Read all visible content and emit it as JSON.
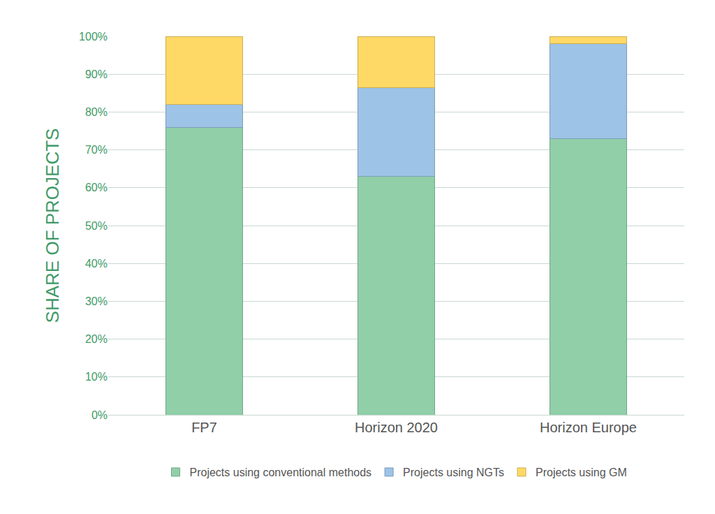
{
  "chart_data": {
    "type": "bar",
    "stacked": true,
    "grid": true,
    "legend": "bottom",
    "y_label": "SHARE OF PROJECTS",
    "categories": [
      "FP7",
      "Horizon 2020",
      "Horizon Europe"
    ],
    "series": [
      {
        "name": "Projects using conventional methods",
        "color": "#90cfa8",
        "values": [
          76,
          63,
          73
        ]
      },
      {
        "name": "Projects using NGTs",
        "color": "#9dc3e6",
        "values": [
          6,
          23.5,
          25
        ]
      },
      {
        "name": "Projects using GM",
        "color": "#ffd966",
        "values": [
          18,
          13.5,
          2
        ]
      }
    ],
    "ylim": [
      0,
      100
    ],
    "yticks": [
      {
        "value": 0,
        "label": "0%"
      },
      {
        "value": 10,
        "label": "10%"
      },
      {
        "value": 20,
        "label": "20%"
      },
      {
        "value": 30,
        "label": "30%"
      },
      {
        "value": 40,
        "label": "40%"
      },
      {
        "value": 50,
        "label": "50%"
      },
      {
        "value": 60,
        "label": "60%"
      },
      {
        "value": 70,
        "label": "70%"
      },
      {
        "value": 80,
        "label": "80%"
      },
      {
        "value": 90,
        "label": "90%"
      },
      {
        "value": 100,
        "label": "100%"
      }
    ]
  }
}
